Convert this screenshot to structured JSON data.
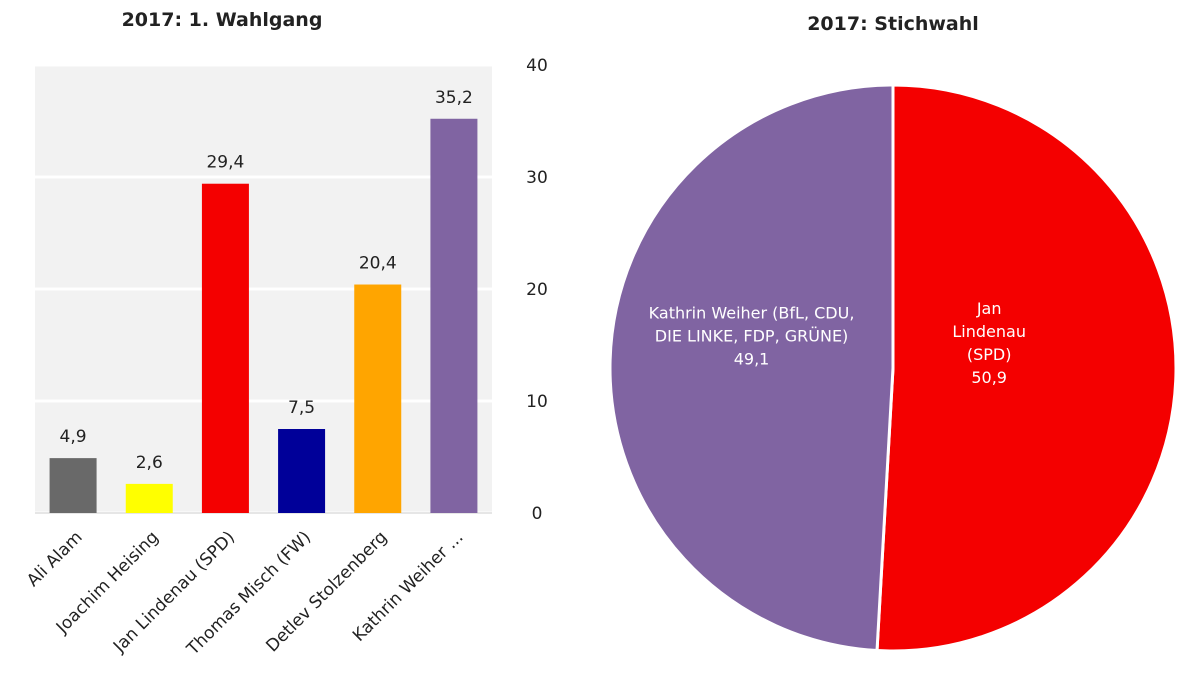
{
  "chart_data": [
    {
      "type": "bar",
      "title": "2017: 1. Wahlgang",
      "categories": [
        "Ali Alam",
        "Joachim Heising",
        "Jan Lindenau (SPD)",
        "Thomas Misch (FW)",
        "Detlev Stolzenberg",
        "Kathrin Weiher ..."
      ],
      "values": [
        4.9,
        2.6,
        29.4,
        7.5,
        20.4,
        35.2
      ],
      "value_labels": [
        "4,9",
        "2,6",
        "29,4",
        "7,5",
        "20,4",
        "35,2"
      ],
      "colors": [
        "#696969",
        "#ffff00",
        "#f40000",
        "#000099",
        "#ffa500",
        "#8064a2"
      ],
      "ylim": [
        0,
        40
      ],
      "yticks": [
        0,
        10,
        20,
        30,
        40
      ],
      "grid": true
    },
    {
      "type": "pie",
      "title": "2017: Stichwahl",
      "categories": [
        "Jan Lindenau (SPD)",
        "Kathrin Weiher (BfL, CDU, DIE LINKE, FDP, GRÜNE)"
      ],
      "values": [
        50.9,
        49.1
      ],
      "value_labels": [
        "50,9",
        "49,1"
      ],
      "colors": [
        "#f40000",
        "#8064a2"
      ]
    }
  ]
}
